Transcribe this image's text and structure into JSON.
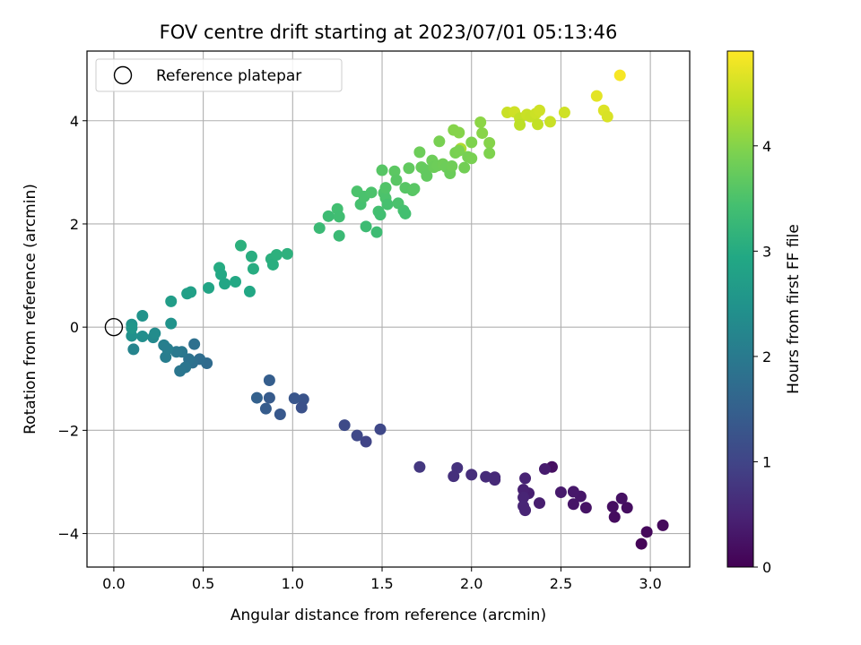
{
  "chart_data": {
    "type": "scatter",
    "title": "FOV centre drift starting at 2023/07/01 05:13:46",
    "xlabel": "Angular distance from reference (arcmin)",
    "ylabel": "Rotation from reference (arcmin)",
    "xlim": [
      -0.15,
      3.22
    ],
    "ylim": [
      -4.65,
      5.35
    ],
    "xticks": [
      0.0,
      0.5,
      1.0,
      1.5,
      2.0,
      2.5,
      3.0
    ],
    "xtick_labels": [
      "0.0",
      "0.5",
      "1.0",
      "1.5",
      "2.0",
      "2.5",
      "3.0"
    ],
    "yticks": [
      -4,
      -2,
      0,
      2,
      4
    ],
    "ytick_labels": [
      "−4",
      "−2",
      "0",
      "2",
      "4"
    ],
    "grid": true,
    "legend": {
      "position": "top-left",
      "label": "Reference platepar"
    },
    "reference_point": {
      "x": 0.0,
      "y": 0.0
    },
    "colorbar": {
      "label": "Hours from first FF file",
      "colormap": "viridis",
      "range": [
        0,
        4.9
      ],
      "ticks": [
        0,
        1,
        2,
        3,
        4
      ],
      "tick_labels": [
        "0",
        "1",
        "2",
        "3",
        "4"
      ]
    },
    "series": [
      {
        "values": [
          {
            "x": 2.95,
            "y": -4.2,
            "c": 0.05
          },
          {
            "x": 2.98,
            "y": -3.97,
            "c": 0.1
          },
          {
            "x": 3.07,
            "y": -3.84,
            "c": 0.12
          },
          {
            "x": 2.8,
            "y": -3.68,
            "c": 0.15
          },
          {
            "x": 2.79,
            "y": -3.48,
            "c": 0.2
          },
          {
            "x": 2.87,
            "y": -3.5,
            "c": 0.18
          },
          {
            "x": 2.84,
            "y": -3.32,
            "c": 0.22
          },
          {
            "x": 2.64,
            "y": -3.5,
            "c": 0.25
          },
          {
            "x": 2.57,
            "y": -3.43,
            "c": 0.28
          },
          {
            "x": 2.61,
            "y": -3.28,
            "c": 0.3
          },
          {
            "x": 2.57,
            "y": -3.19,
            "c": 0.32
          },
          {
            "x": 2.5,
            "y": -3.2,
            "c": 0.35
          },
          {
            "x": 2.45,
            "y": -2.71,
            "c": 0.2
          },
          {
            "x": 2.41,
            "y": -2.75,
            "c": 0.38
          },
          {
            "x": 2.38,
            "y": -3.41,
            "c": 0.4
          },
          {
            "x": 2.32,
            "y": -3.22,
            "c": 0.42
          },
          {
            "x": 2.29,
            "y": -3.15,
            "c": 0.45
          },
          {
            "x": 2.3,
            "y": -2.93,
            "c": 0.48
          },
          {
            "x": 2.29,
            "y": -3.3,
            "c": 0.5
          },
          {
            "x": 2.29,
            "y": -3.47,
            "c": 0.52
          },
          {
            "x": 2.3,
            "y": -3.55,
            "c": 0.5
          },
          {
            "x": 2.13,
            "y": -2.91,
            "c": 0.55
          },
          {
            "x": 2.13,
            "y": -2.96,
            "c": 0.58
          },
          {
            "x": 2.08,
            "y": -2.9,
            "c": 0.6
          },
          {
            "x": 2.0,
            "y": -2.86,
            "c": 0.65
          },
          {
            "x": 1.92,
            "y": -2.73,
            "c": 0.7
          },
          {
            "x": 1.9,
            "y": -2.89,
            "c": 0.68
          },
          {
            "x": 1.71,
            "y": -2.71,
            "c": 0.8
          },
          {
            "x": 1.49,
            "y": -1.98,
            "c": 1.05
          },
          {
            "x": 1.41,
            "y": -2.22,
            "c": 1.0
          },
          {
            "x": 1.36,
            "y": -2.1,
            "c": 1.05
          },
          {
            "x": 1.29,
            "y": -1.9,
            "c": 1.1
          },
          {
            "x": 1.06,
            "y": -1.4,
            "c": 1.25
          },
          {
            "x": 1.05,
            "y": -1.56,
            "c": 1.22
          },
          {
            "x": 1.01,
            "y": -1.38,
            "c": 1.3
          },
          {
            "x": 0.93,
            "y": -1.69,
            "c": 1.35
          },
          {
            "x": 0.87,
            "y": -1.37,
            "c": 1.4
          },
          {
            "x": 0.87,
            "y": -1.03,
            "c": 1.45
          },
          {
            "x": 0.85,
            "y": -1.58,
            "c": 1.42
          },
          {
            "x": 0.8,
            "y": -1.37,
            "c": 1.5
          },
          {
            "x": 0.52,
            "y": -0.7,
            "c": 1.7
          },
          {
            "x": 0.48,
            "y": -0.62,
            "c": 1.75
          },
          {
            "x": 0.45,
            "y": -0.33,
            "c": 1.8
          },
          {
            "x": 0.44,
            "y": -0.69,
            "c": 1.78
          },
          {
            "x": 0.42,
            "y": -0.62,
            "c": 1.85
          },
          {
            "x": 0.4,
            "y": -0.78,
            "c": 1.9
          },
          {
            "x": 0.38,
            "y": -0.48,
            "c": 1.95
          },
          {
            "x": 0.37,
            "y": -0.85,
            "c": 1.92
          },
          {
            "x": 0.35,
            "y": -0.48,
            "c": 1.98
          },
          {
            "x": 0.29,
            "y": -0.58,
            "c": 2.05
          },
          {
            "x": 0.28,
            "y": -0.35,
            "c": 2.1
          },
          {
            "x": 0.3,
            "y": -0.42,
            "c": 2.08
          },
          {
            "x": 0.22,
            "y": -0.2,
            "c": 2.3
          },
          {
            "x": 0.23,
            "y": -0.12,
            "c": 2.35
          },
          {
            "x": 0.16,
            "y": -0.18,
            "c": 2.4
          },
          {
            "x": 0.16,
            "y": 0.22,
            "c": 2.5
          },
          {
            "x": 0.11,
            "y": -0.43,
            "c": 2.2
          },
          {
            "x": 0.1,
            "y": -0.17,
            "c": 2.45
          },
          {
            "x": 0.1,
            "y": 0.05,
            "c": 2.5
          },
          {
            "x": 0.1,
            "y": -0.02,
            "c": 2.55
          },
          {
            "x": 0.32,
            "y": 0.07,
            "c": 2.5
          },
          {
            "x": 0.32,
            "y": 0.5,
            "c": 2.7
          },
          {
            "x": 0.41,
            "y": 0.65,
            "c": 2.75
          },
          {
            "x": 0.43,
            "y": 0.68,
            "c": 2.78
          },
          {
            "x": 0.53,
            "y": 0.76,
            "c": 2.85
          },
          {
            "x": 0.59,
            "y": 1.15,
            "c": 3.0
          },
          {
            "x": 0.6,
            "y": 1.02,
            "c": 2.95
          },
          {
            "x": 0.62,
            "y": 0.84,
            "c": 2.9
          },
          {
            "x": 0.68,
            "y": 0.88,
            "c": 2.95
          },
          {
            "x": 0.71,
            "y": 1.58,
            "c": 3.1
          },
          {
            "x": 0.76,
            "y": 0.69,
            "c": 2.92
          },
          {
            "x": 0.77,
            "y": 1.37,
            "c": 3.05
          },
          {
            "x": 0.78,
            "y": 1.13,
            "c": 3.02
          },
          {
            "x": 0.88,
            "y": 1.32,
            "c": 3.08
          },
          {
            "x": 0.89,
            "y": 1.21,
            "c": 3.06
          },
          {
            "x": 0.91,
            "y": 1.4,
            "c": 3.1
          },
          {
            "x": 0.97,
            "y": 1.42,
            "c": 3.12
          },
          {
            "x": 1.15,
            "y": 1.92,
            "c": 3.3
          },
          {
            "x": 1.2,
            "y": 2.15,
            "c": 3.35
          },
          {
            "x": 1.25,
            "y": 2.29,
            "c": 3.4
          },
          {
            "x": 1.26,
            "y": 2.14,
            "c": 3.38
          },
          {
            "x": 1.26,
            "y": 1.77,
            "c": 3.3
          },
          {
            "x": 1.36,
            "y": 2.63,
            "c": 3.5
          },
          {
            "x": 1.38,
            "y": 2.38,
            "c": 3.45
          },
          {
            "x": 1.4,
            "y": 2.53,
            "c": 3.48
          },
          {
            "x": 1.41,
            "y": 1.95,
            "c": 3.35
          },
          {
            "x": 1.44,
            "y": 2.61,
            "c": 3.5
          },
          {
            "x": 1.47,
            "y": 1.84,
            "c": 3.35
          },
          {
            "x": 1.48,
            "y": 2.24,
            "c": 3.42
          },
          {
            "x": 1.49,
            "y": 2.18,
            "c": 3.4
          },
          {
            "x": 1.5,
            "y": 3.04,
            "c": 3.6
          },
          {
            "x": 1.51,
            "y": 2.6,
            "c": 3.52
          },
          {
            "x": 1.52,
            "y": 2.5,
            "c": 3.5
          },
          {
            "x": 1.52,
            "y": 2.7,
            "c": 3.55
          },
          {
            "x": 1.53,
            "y": 2.38,
            "c": 3.45
          },
          {
            "x": 1.57,
            "y": 3.02,
            "c": 3.65
          },
          {
            "x": 1.58,
            "y": 2.85,
            "c": 3.62
          },
          {
            "x": 1.59,
            "y": 2.4,
            "c": 3.48
          },
          {
            "x": 1.62,
            "y": 2.26,
            "c": 3.45
          },
          {
            "x": 1.63,
            "y": 2.2,
            "c": 3.42
          },
          {
            "x": 1.63,
            "y": 2.7,
            "c": 3.6
          },
          {
            "x": 1.65,
            "y": 3.08,
            "c": 3.7
          },
          {
            "x": 1.67,
            "y": 2.65,
            "c": 3.6
          },
          {
            "x": 1.68,
            "y": 2.68,
            "c": 3.62
          },
          {
            "x": 1.71,
            "y": 3.39,
            "c": 3.8
          },
          {
            "x": 1.72,
            "y": 3.1,
            "c": 3.75
          },
          {
            "x": 1.74,
            "y": 3.05,
            "c": 3.72
          },
          {
            "x": 1.75,
            "y": 2.93,
            "c": 3.7
          },
          {
            "x": 1.78,
            "y": 3.23,
            "c": 3.8
          },
          {
            "x": 1.79,
            "y": 3.1,
            "c": 3.78
          },
          {
            "x": 1.81,
            "y": 3.13,
            "c": 3.8
          },
          {
            "x": 1.82,
            "y": 3.6,
            "c": 3.9
          },
          {
            "x": 1.84,
            "y": 3.16,
            "c": 3.82
          },
          {
            "x": 1.86,
            "y": 3.1,
            "c": 3.8
          },
          {
            "x": 1.88,
            "y": 2.98,
            "c": 3.78
          },
          {
            "x": 1.89,
            "y": 3.12,
            "c": 3.82
          },
          {
            "x": 1.9,
            "y": 3.82,
            "c": 4.0
          },
          {
            "x": 1.91,
            "y": 3.38,
            "c": 3.9
          },
          {
            "x": 1.93,
            "y": 3.77,
            "c": 4.0
          },
          {
            "x": 1.94,
            "y": 3.46,
            "c": 4.3
          },
          {
            "x": 1.96,
            "y": 3.09,
            "c": 3.85
          },
          {
            "x": 1.98,
            "y": 3.3,
            "c": 3.88
          },
          {
            "x": 2.0,
            "y": 3.58,
            "c": 3.95
          },
          {
            "x": 2.0,
            "y": 3.27,
            "c": 3.9
          },
          {
            "x": 1.93,
            "y": 3.42,
            "c": 3.92
          },
          {
            "x": 2.05,
            "y": 3.97,
            "c": 4.05
          },
          {
            "x": 2.06,
            "y": 3.76,
            "c": 4.02
          },
          {
            "x": 2.1,
            "y": 3.57,
            "c": 4.0
          },
          {
            "x": 2.1,
            "y": 3.37,
            "c": 3.95
          },
          {
            "x": 2.2,
            "y": 4.16,
            "c": 4.5
          },
          {
            "x": 2.24,
            "y": 4.17,
            "c": 4.55
          },
          {
            "x": 2.27,
            "y": 4.05,
            "c": 4.45
          },
          {
            "x": 2.27,
            "y": 3.92,
            "c": 4.4
          },
          {
            "x": 2.31,
            "y": 4.12,
            "c": 4.5
          },
          {
            "x": 2.33,
            "y": 4.08,
            "c": 4.48
          },
          {
            "x": 2.36,
            "y": 4.14,
            "c": 4.52
          },
          {
            "x": 2.37,
            "y": 3.93,
            "c": 4.45
          },
          {
            "x": 2.38,
            "y": 4.2,
            "c": 4.55
          },
          {
            "x": 2.44,
            "y": 3.98,
            "c": 4.5
          },
          {
            "x": 2.52,
            "y": 4.16,
            "c": 4.55
          },
          {
            "x": 2.7,
            "y": 4.48,
            "c": 4.7
          },
          {
            "x": 2.74,
            "y": 4.2,
            "c": 4.65
          },
          {
            "x": 2.76,
            "y": 4.08,
            "c": 4.62
          },
          {
            "x": 2.83,
            "y": 4.88,
            "c": 4.85
          }
        ]
      }
    ]
  }
}
